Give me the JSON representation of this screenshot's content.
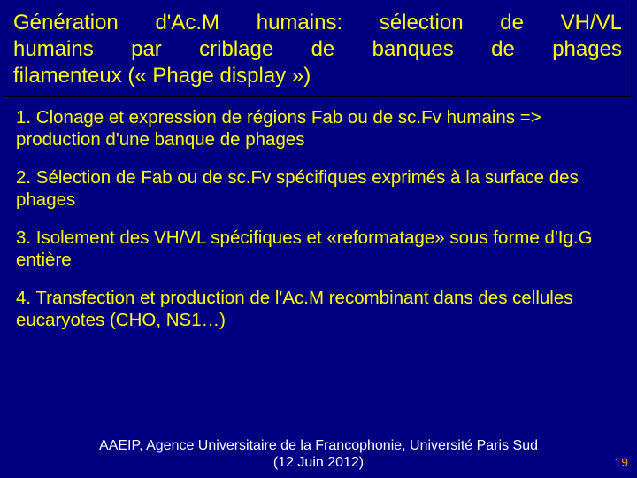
{
  "colors": {
    "background": "#000080",
    "title_text": "#ffff00",
    "body_text": "#ffff00",
    "footer_text": "#ffffff",
    "pagenum_text": "#ff9900",
    "border": "#000000"
  },
  "title": {
    "line1_words": [
      "Génération",
      "d'Ac.M",
      "humains:",
      "sélection",
      "de",
      "VH/VL"
    ],
    "line2_words": [
      "humains",
      "par",
      "criblage",
      "de",
      "banques",
      "de",
      "phages"
    ],
    "line3": "filamenteux (« Phage display »)"
  },
  "steps": [
    "1. Clonage et expression de régions Fab ou de sc.Fv humains => production d'une banque de phages",
    "2. Sélection de Fab ou de sc.Fv spécifiques exprimés à la surface des phages",
    "3. Isolement des VH/VL spécifiques et «reformatage» sous forme d'Ig.G entière",
    "4. Transfection et production de l'Ac.M recombinant dans des cellules eucaryotes (CHO, NS1…)"
  ],
  "footer": {
    "line1": "AAEIP, Agence Universitaire de la Francophonie, Université Paris Sud",
    "line2": "(12 Juin 2012)"
  },
  "page_number": "19"
}
